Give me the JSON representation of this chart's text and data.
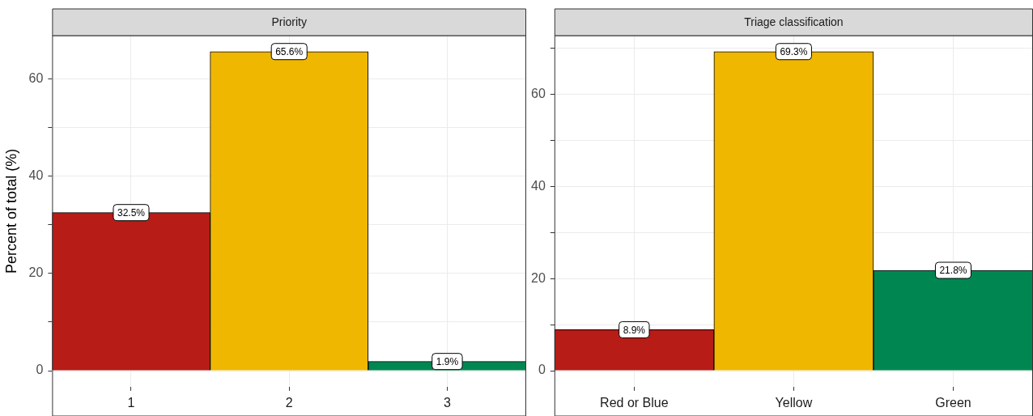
{
  "chart_data": [
    {
      "type": "bar",
      "title": "Priority",
      "ylabel": "Percent of total (%)",
      "categories": [
        "1",
        "2",
        "3"
      ],
      "values": [
        32.5,
        65.6,
        1.9
      ],
      "colors": [
        "#b71c17",
        "#efb700",
        "#008751"
      ],
      "value_labels": [
        "32.5%",
        "65.6%",
        "1.9%"
      ],
      "ylim": [
        -3.28,
        68.88
      ],
      "yticks": [
        0,
        {
          "value": 10,
          "label": null
        },
        20,
        {
          "value": 30,
          "label": null
        },
        40,
        {
          "value": 50,
          "label": null
        },
        60
      ],
      "grid": true,
      "legend": false
    },
    {
      "type": "bar",
      "title": "Triage classification",
      "categories": [
        "Red or Blue",
        "Yellow",
        "Green"
      ],
      "values": [
        8.9,
        69.3,
        21.8
      ],
      "colors": [
        "#b71c17",
        "#efb700",
        "#008751"
      ],
      "value_labels": [
        "8.9%",
        "69.3%",
        "21.8%"
      ],
      "ylim": [
        -3.47,
        72.77
      ],
      "yticks": [
        0,
        {
          "value": 10,
          "label": null
        },
        20,
        {
          "value": 30,
          "label": null
        },
        40,
        {
          "value": 50,
          "label": null
        },
        60,
        {
          "value": 70,
          "label": null
        }
      ],
      "grid": true,
      "legend": false
    }
  ]
}
